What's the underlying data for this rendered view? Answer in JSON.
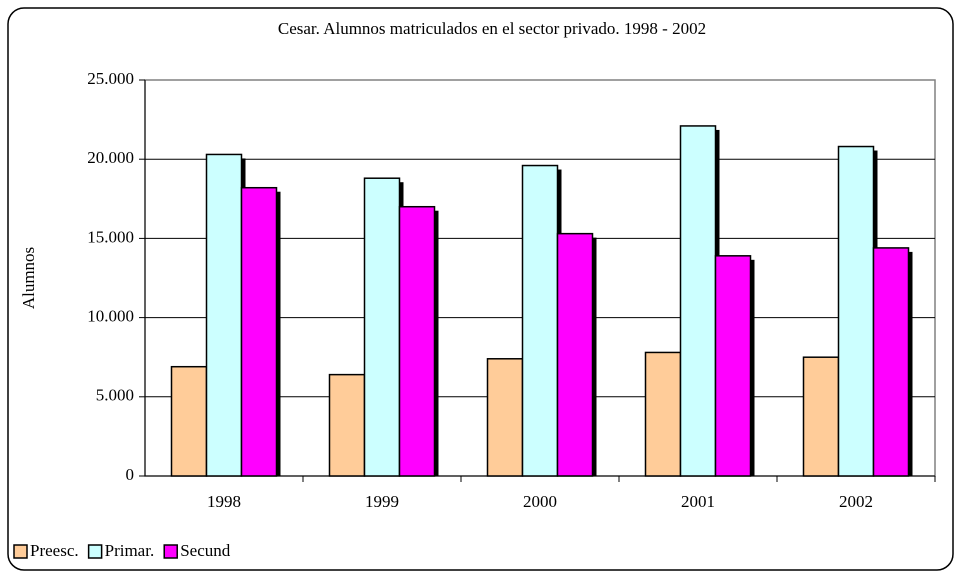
{
  "chart_data": {
    "type": "bar",
    "title": "Cesar. Alumnos matriculados en el sector privado.  1998 - 2002",
    "y_label": "Alumnos",
    "categories": [
      "1998",
      "1999",
      "2000",
      "2001",
      "2002"
    ],
    "series": [
      {
        "name": "Preesc.",
        "color": "#ffcc99",
        "values": [
          6900,
          6400,
          7400,
          7800,
          7500
        ]
      },
      {
        "name": "Primar.",
        "color": "#ccffff",
        "values": [
          20300,
          18800,
          19600,
          22100,
          20800
        ]
      },
      {
        "name": "Secund",
        "color": "#ff00ff",
        "values": [
          18200,
          17000,
          15300,
          13900,
          14400
        ]
      }
    ],
    "ylim": [
      0,
      25000
    ],
    "yticks": [
      0,
      {
        "value": 5000,
        "label": "5.000"
      },
      {
        "value": 10000,
        "label": "10.000"
      },
      {
        "value": 15000,
        "label": "15.000"
      },
      {
        "value": 20000,
        "label": "20.000"
      },
      {
        "value": 25000,
        "label": "25.000"
      }
    ],
    "grid": true,
    "legend": "bottom-left"
  }
}
